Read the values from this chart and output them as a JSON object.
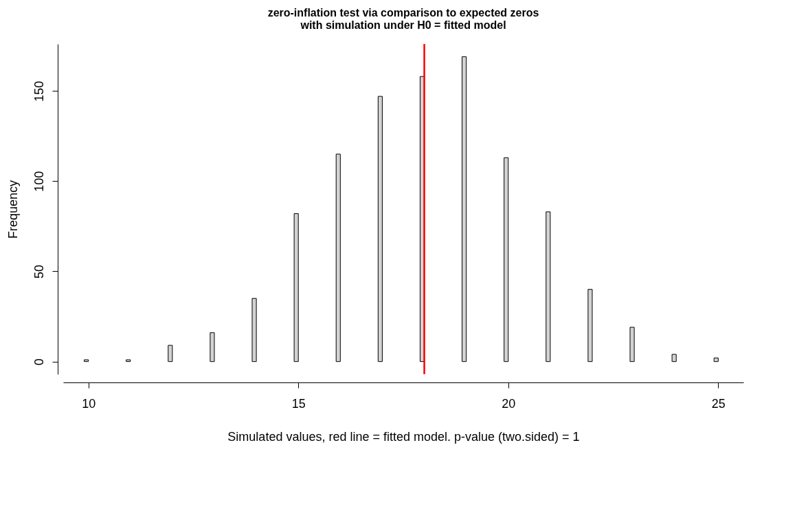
{
  "chart_data": {
    "type": "histogram",
    "title": "zero-inflation test via comparison to expected zeros with simulation under H0 = fitted model",
    "xlabel": "Simulated values, red line = fitted model. p-value (two.sided) = 1",
    "ylabel": "Frequency",
    "bins": [
      9.9,
      10,
      10.9,
      11,
      11.9,
      12,
      12.9,
      13,
      13.9,
      14,
      14.9,
      15,
      15.9,
      16,
      16.9,
      17,
      17.9,
      18,
      18.9,
      19,
      19.9,
      20,
      20.9,
      21,
      21.9,
      22,
      22.9,
      23,
      23.9,
      24,
      24.9,
      25
    ],
    "values": [
      1,
      0,
      1,
      0,
      9,
      0,
      16,
      0,
      35,
      0,
      82,
      0,
      115,
      0,
      147,
      0,
      158,
      0,
      169,
      0,
      113,
      0,
      83,
      0,
      40,
      0,
      19,
      0,
      4,
      0,
      2
    ],
    "color": "#d3d3d3",
    "xlim": [
      9.4,
      25.6
    ],
    "xticks": [
      10,
      15,
      20,
      25
    ],
    "ylim": [
      -7,
      176
    ],
    "yticks": [
      0,
      50,
      100,
      150
    ],
    "grid": false,
    "ref_lines": [
      {
        "axis": "x",
        "value": 18,
        "color": "#ff0000"
      }
    ]
  }
}
